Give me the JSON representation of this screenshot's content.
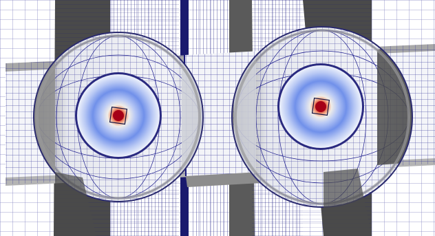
{
  "scene": {
    "description_visible_text": "",
    "colors": {
      "background": "#ffffff",
      "mesh_line": "#1a1a8c",
      "mesh_line_dense": "#101070",
      "dark_slab": "#4a4a4a",
      "grey_face": "#9a9a9a",
      "light_face": "#eef0f6",
      "field_outer": "#ffffff",
      "field_mid": "#6f8ff0",
      "field_core_hot": "#b00018",
      "field_core_warm": "#f4a582"
    },
    "objects": [
      {
        "name": "left-sphere",
        "icon": "sphere-mesh"
      },
      {
        "name": "right-sphere",
        "icon": "sphere-mesh"
      },
      {
        "name": "left-field-disc",
        "icon": "colormap-disc"
      },
      {
        "name": "right-field-disc",
        "icon": "colormap-disc"
      }
    ]
  }
}
